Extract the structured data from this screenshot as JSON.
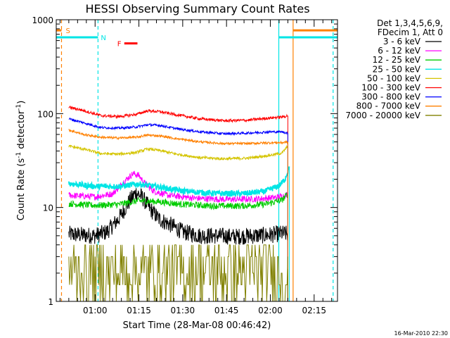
{
  "chart_data": {
    "type": "line",
    "title": "HESSI Observing Summary Count Rates",
    "xlabel": "Start Time (28-Mar-08 00:46:42)",
    "ylabel_main": "Count Rate (s",
    "ylabel_sup1": "-1",
    "ylabel_mid": " detector",
    "ylabel_sup2": "-1",
    "ylabel_end": ")",
    "yscale": "log",
    "ylim": [
      1,
      1000
    ],
    "xlim_min": [
      46.7,
      143.0
    ],
    "x_ticks": [
      {
        "t": 60,
        "label": "01:00"
      },
      {
        "t": 75,
        "label": "01:15"
      },
      {
        "t": 90,
        "label": "01:30"
      },
      {
        "t": 105,
        "label": "01:45"
      },
      {
        "t": 120,
        "label": "02:00"
      },
      {
        "t": 135,
        "label": "02:15"
      }
    ],
    "y_ticks": [
      {
        "v": 1,
        "label": "1"
      },
      {
        "v": 10,
        "label": "10"
      },
      {
        "v": 100,
        "label": "100"
      },
      {
        "v": 1000,
        "label": "1000"
      }
    ],
    "legend_header": [
      "Det 1,3,4,5,6,9,",
      "FDecim 1, Att 0"
    ],
    "legend_placement": "right",
    "footer": "16-Mar-2010 22:30",
    "series": [
      {
        "name": "3 - 6 keV",
        "color": "#000000",
        "noise": 0.09,
        "points": [
          [
            51,
            5.2
          ],
          [
            60,
            5.0
          ],
          [
            64,
            5.5
          ],
          [
            68,
            7.5
          ],
          [
            72,
            12
          ],
          [
            74,
            14.5
          ],
          [
            76,
            13
          ],
          [
            79,
            9.5
          ],
          [
            82,
            7.5
          ],
          [
            86,
            6.5
          ],
          [
            90,
            5.5
          ],
          [
            96,
            5.0
          ],
          [
            102,
            5.0
          ],
          [
            108,
            4.9
          ],
          [
            114,
            5.0
          ],
          [
            120,
            5.1
          ],
          [
            124,
            5.3
          ],
          [
            126,
            5.2
          ]
        ]
      },
      {
        "name": "6 - 12 keV",
        "color": "#ff00ff",
        "noise": 0.035,
        "points": [
          [
            51,
            13.5
          ],
          [
            60,
            13
          ],
          [
            66,
            14
          ],
          [
            70,
            19
          ],
          [
            73,
            23
          ],
          [
            75,
            22
          ],
          [
            77,
            18
          ],
          [
            80,
            15
          ],
          [
            85,
            13.5
          ],
          [
            95,
            12.5
          ],
          [
            105,
            12.2
          ],
          [
            115,
            12.3
          ],
          [
            122,
            12.8
          ],
          [
            125.5,
            13.5
          ],
          [
            126,
            14
          ]
        ]
      },
      {
        "name": "12 - 25 keV",
        "color": "#00cc00",
        "noise": 0.035,
        "points": [
          [
            51,
            11
          ],
          [
            60,
            10.5
          ],
          [
            68,
            10.8
          ],
          [
            75,
            11.8
          ],
          [
            82,
            11.5
          ],
          [
            90,
            10.8
          ],
          [
            100,
            10.4
          ],
          [
            110,
            10.4
          ],
          [
            118,
            10.8
          ],
          [
            124,
            12
          ],
          [
            126,
            14
          ]
        ]
      },
      {
        "name": "25 - 50 keV",
        "color": "#00e5e5",
        "noise": 0.03,
        "width": 1.8,
        "points": [
          [
            51,
            18
          ],
          [
            60,
            16.8
          ],
          [
            68,
            16.8
          ],
          [
            75,
            17.8
          ],
          [
            82,
            16.5
          ],
          [
            90,
            15
          ],
          [
            100,
            14.2
          ],
          [
            110,
            14
          ],
          [
            118,
            14.8
          ],
          [
            123,
            17
          ],
          [
            125,
            20
          ],
          [
            126.5,
            27
          ]
        ]
      },
      {
        "name": "50 - 100 keV",
        "color": "#d4c400",
        "noise": 0.015,
        "points": [
          [
            51,
            45
          ],
          [
            56,
            42
          ],
          [
            62,
            37.5
          ],
          [
            68,
            37
          ],
          [
            74,
            38.5
          ],
          [
            78,
            42
          ],
          [
            82,
            40.5
          ],
          [
            88,
            37
          ],
          [
            96,
            34
          ],
          [
            104,
            33
          ],
          [
            112,
            33.5
          ],
          [
            120,
            36
          ],
          [
            124,
            38
          ],
          [
            126,
            45
          ]
        ]
      },
      {
        "name": "100 - 300 keV",
        "color": "#ff0000",
        "noise": 0.015,
        "points": [
          [
            51,
            117
          ],
          [
            56,
            108
          ],
          [
            62,
            95
          ],
          [
            68,
            93
          ],
          [
            74,
            98
          ],
          [
            78,
            107
          ],
          [
            82,
            105
          ],
          [
            88,
            97
          ],
          [
            96,
            88
          ],
          [
            104,
            84
          ],
          [
            112,
            85
          ],
          [
            120,
            90
          ],
          [
            124,
            92
          ],
          [
            126,
            95
          ]
        ]
      },
      {
        "name": "300 - 800 keV",
        "color": "#0000ff",
        "noise": 0.013,
        "points": [
          [
            51,
            88
          ],
          [
            56,
            80
          ],
          [
            62,
            71
          ],
          [
            68,
            70
          ],
          [
            74,
            72
          ],
          [
            78,
            76
          ],
          [
            82,
            75
          ],
          [
            88,
            69
          ],
          [
            96,
            64
          ],
          [
            104,
            61
          ],
          [
            112,
            62
          ],
          [
            120,
            64
          ],
          [
            124,
            64
          ],
          [
            126,
            62
          ]
        ]
      },
      {
        "name": "800 - 7000 keV",
        "color": "#ff8000",
        "noise": 0.012,
        "points": [
          [
            51,
            67
          ],
          [
            56,
            60
          ],
          [
            62,
            56
          ],
          [
            68,
            55
          ],
          [
            74,
            56
          ],
          [
            78,
            59
          ],
          [
            82,
            58
          ],
          [
            88,
            54
          ],
          [
            96,
            50
          ],
          [
            104,
            48
          ],
          [
            112,
            48
          ],
          [
            120,
            49
          ],
          [
            124,
            49
          ],
          [
            126,
            50
          ]
        ]
      },
      {
        "name": "7000 - 20000 keV",
        "color": "#808000",
        "noise": 0,
        "points": [
          [
            51,
            2.2
          ],
          [
            126,
            2.2
          ]
        ]
      }
    ],
    "vertical_markers": [
      {
        "t": 48.5,
        "color": "#ff8000",
        "dash": true
      },
      {
        "t": 61.0,
        "color": "#00e5e5",
        "dash": true
      },
      {
        "t": 122.9,
        "color": "#00e5e5",
        "dash": false
      },
      {
        "t": 127.8,
        "color": "#ff8000",
        "dash": false
      },
      {
        "t": 141.5,
        "color": "#00e5e5",
        "dash": true
      }
    ],
    "saa_flag": {
      "label": "S",
      "color": "#ff8000",
      "y": 770,
      "segments": [
        [
          46.7,
          48.5
        ],
        [
          127.8,
          143.0
        ]
      ]
    },
    "night_flag": {
      "label": "N",
      "color": "#00e5e5",
      "y": 650,
      "segments": [
        [
          46.7,
          61.0
        ],
        [
          122.9,
          143.0
        ]
      ]
    },
    "flare_flag": {
      "label": "F",
      "color": "#ff0000",
      "y": 560,
      "segments": [
        [
          70.0,
          74.5
        ]
      ]
    }
  }
}
